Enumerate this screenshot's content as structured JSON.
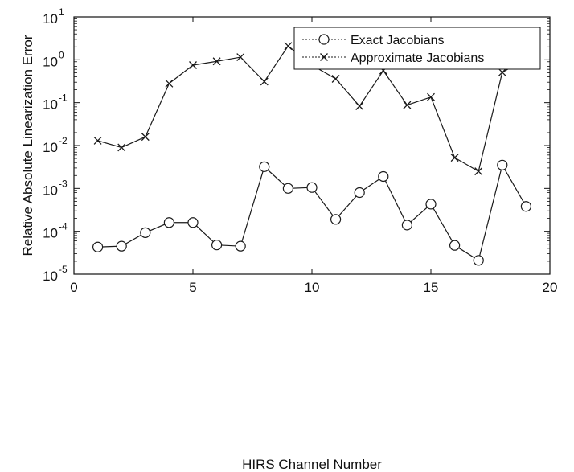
{
  "chart_data": {
    "type": "line",
    "title": "",
    "xlabel": "HIRS Channel Number",
    "ylabel": "Relative Absolute Linearization Error",
    "xlim": [
      0,
      20
    ],
    "ylim": [
      1e-05,
      10
    ],
    "yscale": "log",
    "grid": false,
    "legend_position": "top-right",
    "x_ticks": [
      0,
      5,
      10,
      15,
      20
    ],
    "x_tick_labels": [
      "0",
      "5",
      "10",
      "15",
      "20"
    ],
    "y_ticks": [
      1e-05,
      0.0001,
      0.001,
      0.01,
      0.1,
      1,
      10
    ],
    "y_tick_labels": [
      {
        "base": "10",
        "exp": "-5"
      },
      {
        "base": "10",
        "exp": "-4"
      },
      {
        "base": "10",
        "exp": "-3"
      },
      {
        "base": "10",
        "exp": "-2"
      },
      {
        "base": "10",
        "exp": "-1"
      },
      {
        "base": "10",
        "exp": "0"
      },
      {
        "base": "10",
        "exp": "1"
      }
    ],
    "x": [
      1,
      2,
      3,
      4,
      5,
      6,
      7,
      8,
      9,
      10,
      11,
      12,
      13,
      14,
      15,
      16,
      17,
      18,
      19
    ],
    "series": [
      {
        "name": "Exact Jacobians",
        "marker": "circle",
        "line_style": "solid",
        "values": [
          4.3e-05,
          4.5e-05,
          9.3e-05,
          0.00016,
          0.00016,
          4.8e-05,
          4.5e-05,
          0.0032,
          0.001,
          0.00105,
          0.00019,
          0.0008,
          0.0019,
          0.00014,
          0.00043,
          4.7e-05,
          2.1e-05,
          0.0035,
          0.00038
        ]
      },
      {
        "name": "Approximate Jacobians",
        "marker": "x",
        "line_style": "solid",
        "values": [
          0.013,
          0.009,
          0.016,
          0.28,
          0.75,
          0.92,
          1.15,
          0.31,
          2.1,
          0.75,
          0.36,
          0.083,
          0.56,
          0.088,
          0.135,
          0.0052,
          0.0025,
          0.51,
          1.05
        ]
      }
    ],
    "colors": {
      "line": "#1a1a1a",
      "axis": "#111111",
      "background": "#ffffff"
    }
  }
}
